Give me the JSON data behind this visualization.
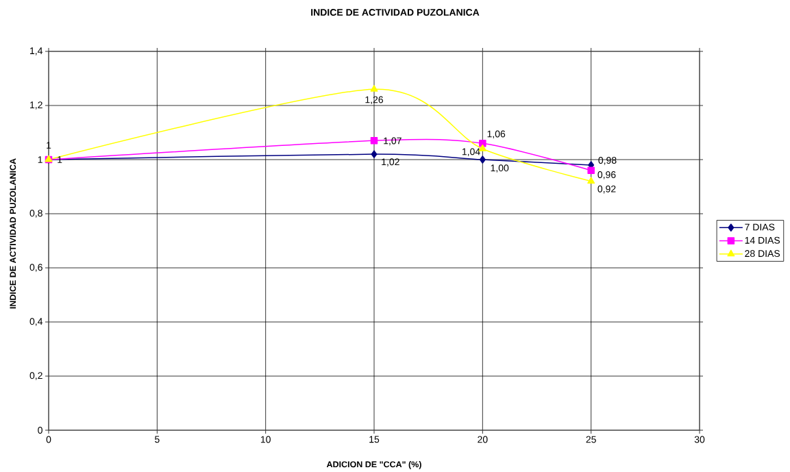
{
  "chart_data": {
    "type": "line",
    "title": "INDICE DE ACTIVIDAD PUZOLANICA",
    "xlabel": "ADICION DE \"CCA\" (%)",
    "ylabel": "INDICE DE ACTIVIDAD PUZOLANICA",
    "x": [
      0,
      15,
      20,
      25
    ],
    "series": [
      {
        "name": "7 DIAS",
        "color": "#000080",
        "marker": "diamond",
        "values": [
          1,
          1.02,
          1.0,
          0.98
        ],
        "value_labels": [
          null,
          "1,02",
          "1,00",
          "0,98"
        ]
      },
      {
        "name": "14 DIAS",
        "color": "#ff00ff",
        "marker": "square",
        "values": [
          1,
          1.07,
          1.06,
          0.96
        ],
        "value_labels": [
          "1",
          "1,07",
          "1,06",
          "0,96"
        ]
      },
      {
        "name": "28 DIAS",
        "color": "#ffff00",
        "marker": "triangle",
        "values": [
          1,
          1.26,
          1.04,
          0.92
        ],
        "value_labels": [
          "1",
          "1,26",
          "1,04",
          "0,92"
        ]
      }
    ],
    "xlim": [
      0,
      30
    ],
    "xticks": [
      0,
      5,
      10,
      15,
      20,
      25,
      30
    ],
    "ylim": [
      0,
      1.4
    ],
    "yticks": [
      0,
      {
        "value": 0.2,
        "label": "0,2"
      },
      {
        "value": 0.4,
        "label": "0,4"
      },
      {
        "value": 0.6,
        "label": "0,6"
      },
      {
        "value": 0.8,
        "label": "0,8"
      },
      1,
      {
        "value": 1.2,
        "label": "1,2"
      },
      {
        "value": 1.4,
        "label": "1,4"
      }
    ],
    "grid": true,
    "legend": "right",
    "line_style": "solid"
  }
}
